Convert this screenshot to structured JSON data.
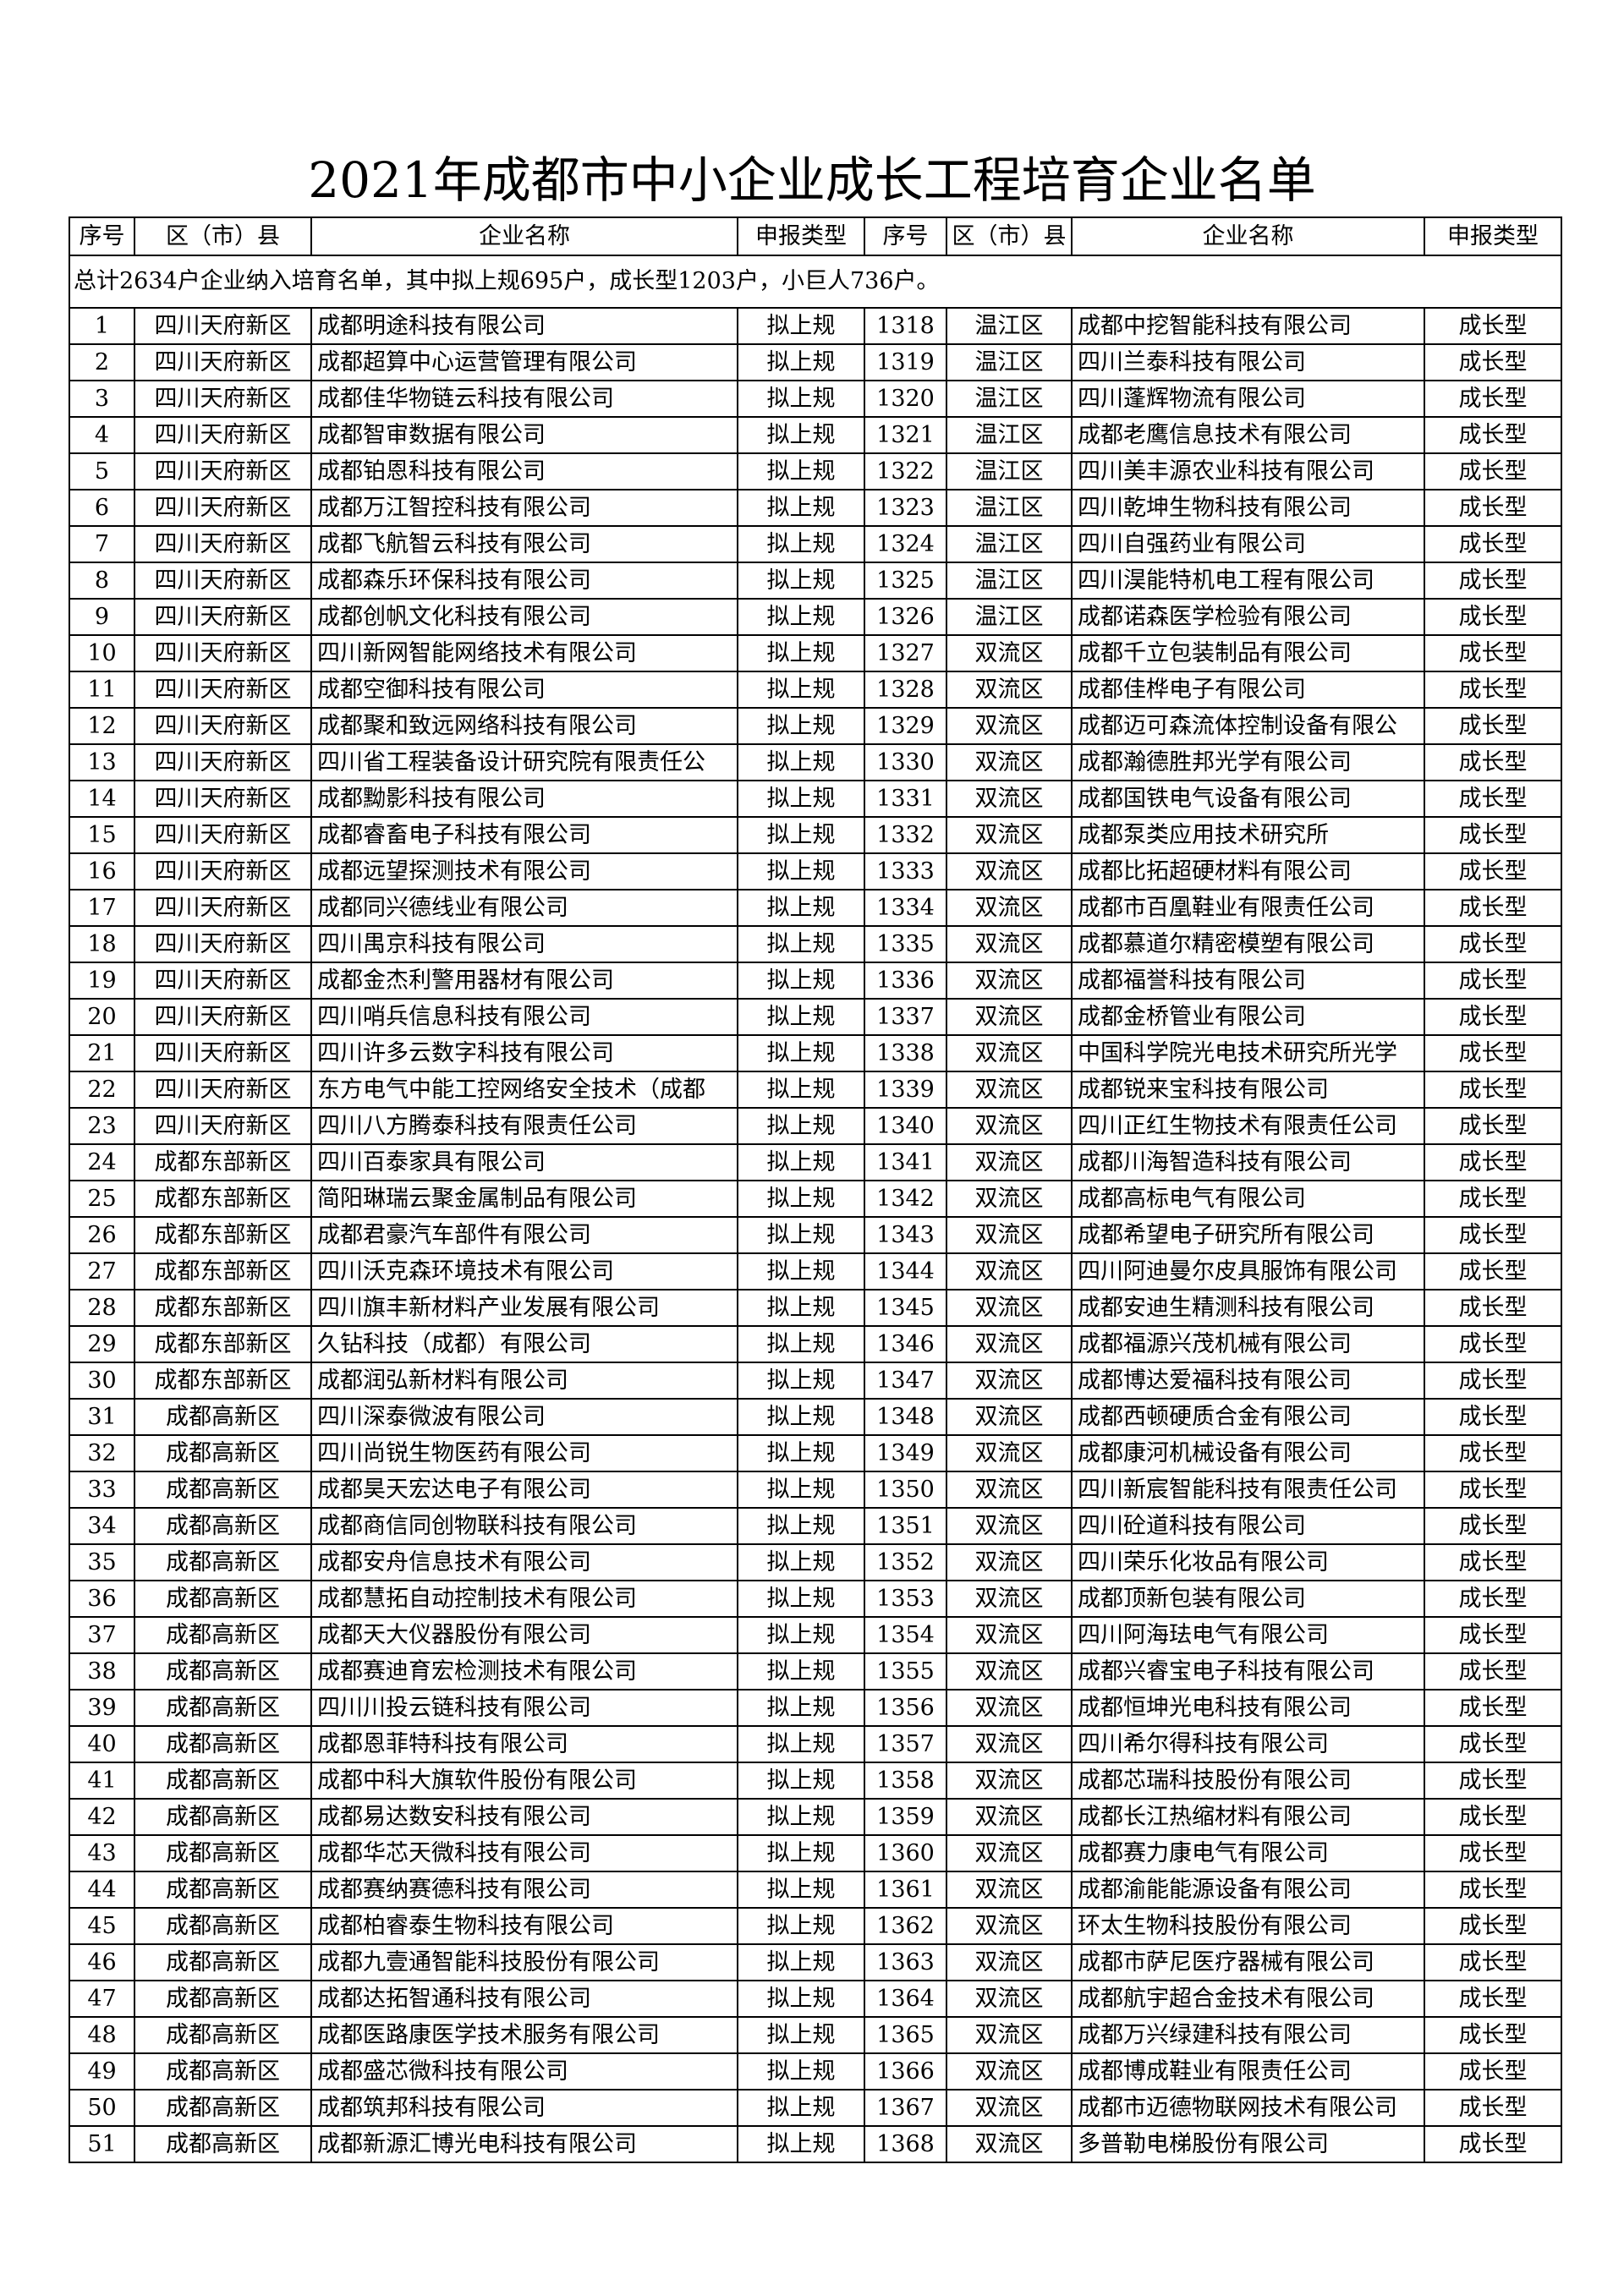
{
  "title": "2021年成都市中小企业成长工程培育企业名单",
  "headers": [
    "序号",
    "区（市）县",
    "企业名称",
    "申报类型",
    "序号",
    "区（市）县",
    "企业名称",
    "申报类型"
  ],
  "summary": "总计2634户企业纳入培育名单，其中拟上规695户，成长型1203户，小巨人736户。",
  "rows": [
    [
      "1",
      "四川天府新区",
      "成都明途科技有限公司",
      "拟上规",
      "1318",
      "温江区",
      "成都中挖智能科技有限公司",
      "成长型"
    ],
    [
      "2",
      "四川天府新区",
      "成都超算中心运营管理有限公司",
      "拟上规",
      "1319",
      "温江区",
      "四川兰泰科技有限公司",
      "成长型"
    ],
    [
      "3",
      "四川天府新区",
      "成都佳华物链云科技有限公司",
      "拟上规",
      "1320",
      "温江区",
      "四川蓬辉物流有限公司",
      "成长型"
    ],
    [
      "4",
      "四川天府新区",
      "成都智审数据有限公司",
      "拟上规",
      "1321",
      "温江区",
      "成都老鹰信息技术有限公司",
      "成长型"
    ],
    [
      "5",
      "四川天府新区",
      "成都铂恩科技有限公司",
      "拟上规",
      "1322",
      "温江区",
      "四川美丰源农业科技有限公司",
      "成长型"
    ],
    [
      "6",
      "四川天府新区",
      "成都万江智控科技有限公司",
      "拟上规",
      "1323",
      "温江区",
      "四川乾坤生物科技有限公司",
      "成长型"
    ],
    [
      "7",
      "四川天府新区",
      "成都飞航智云科技有限公司",
      "拟上规",
      "1324",
      "温江区",
      "四川自强药业有限公司",
      "成长型"
    ],
    [
      "8",
      "四川天府新区",
      "成都森乐环保科技有限公司",
      "拟上规",
      "1325",
      "温江区",
      "四川淏能特机电工程有限公司",
      "成长型"
    ],
    [
      "9",
      "四川天府新区",
      "成都创帆文化科技有限公司",
      "拟上规",
      "1326",
      "温江区",
      "成都诺森医学检验有限公司",
      "成长型"
    ],
    [
      "10",
      "四川天府新区",
      "四川新网智能网络技术有限公司",
      "拟上规",
      "1327",
      "双流区",
      "成都千立包装制品有限公司",
      "成长型"
    ],
    [
      "11",
      "四川天府新区",
      "成都空御科技有限公司",
      "拟上规",
      "1328",
      "双流区",
      "成都佳桦电子有限公司",
      "成长型"
    ],
    [
      "12",
      "四川天府新区",
      "成都聚和致远网络科技有限公司",
      "拟上规",
      "1329",
      "双流区",
      "成都迈可森流体控制设备有限公",
      "成长型"
    ],
    [
      "13",
      "四川天府新区",
      "四川省工程装备设计研究院有限责任公",
      "拟上规",
      "1330",
      "双流区",
      "成都瀚德胜邦光学有限公司",
      "成长型"
    ],
    [
      "14",
      "四川天府新区",
      "成都黝影科技有限公司",
      "拟上规",
      "1331",
      "双流区",
      "成都国铁电气设备有限公司",
      "成长型"
    ],
    [
      "15",
      "四川天府新区",
      "成都睿畜电子科技有限公司",
      "拟上规",
      "1332",
      "双流区",
      "成都泵类应用技术研究所",
      "成长型"
    ],
    [
      "16",
      "四川天府新区",
      "成都远望探测技术有限公司",
      "拟上规",
      "1333",
      "双流区",
      "成都比拓超硬材料有限公司",
      "成长型"
    ],
    [
      "17",
      "四川天府新区",
      "成都同兴德线业有限公司",
      "拟上规",
      "1334",
      "双流区",
      "成都市百凰鞋业有限责任公司",
      "成长型"
    ],
    [
      "18",
      "四川天府新区",
      "四川禺京科技有限公司",
      "拟上规",
      "1335",
      "双流区",
      "成都慕道尔精密模塑有限公司",
      "成长型"
    ],
    [
      "19",
      "四川天府新区",
      "成都金杰利警用器材有限公司",
      "拟上规",
      "1336",
      "双流区",
      "成都福誉科技有限公司",
      "成长型"
    ],
    [
      "20",
      "四川天府新区",
      "四川哨兵信息科技有限公司",
      "拟上规",
      "1337",
      "双流区",
      "成都金桥管业有限公司",
      "成长型"
    ],
    [
      "21",
      "四川天府新区",
      "四川许多云数字科技有限公司",
      "拟上规",
      "1338",
      "双流区",
      "中国科学院光电技术研究所光学",
      "成长型"
    ],
    [
      "22",
      "四川天府新区",
      "东方电气中能工控网络安全技术（成都",
      "拟上规",
      "1339",
      "双流区",
      "成都锐来宝科技有限公司",
      "成长型"
    ],
    [
      "23",
      "四川天府新区",
      "四川八方腾泰科技有限责任公司",
      "拟上规",
      "1340",
      "双流区",
      "四川正红生物技术有限责任公司",
      "成长型"
    ],
    [
      "24",
      "成都东部新区",
      "四川百泰家具有限公司",
      "拟上规",
      "1341",
      "双流区",
      "成都川海智造科技有限公司",
      "成长型"
    ],
    [
      "25",
      "成都东部新区",
      "简阳琳瑞云聚金属制品有限公司",
      "拟上规",
      "1342",
      "双流区",
      "成都高标电气有限公司",
      "成长型"
    ],
    [
      "26",
      "成都东部新区",
      "成都君豪汽车部件有限公司",
      "拟上规",
      "1343",
      "双流区",
      "成都希望电子研究所有限公司",
      "成长型"
    ],
    [
      "27",
      "成都东部新区",
      "四川沃克森环境技术有限公司",
      "拟上规",
      "1344",
      "双流区",
      "四川阿迪曼尔皮具服饰有限公司",
      "成长型"
    ],
    [
      "28",
      "成都东部新区",
      "四川旗丰新材料产业发展有限公司",
      "拟上规",
      "1345",
      "双流区",
      "成都安迪生精测科技有限公司",
      "成长型"
    ],
    [
      "29",
      "成都东部新区",
      "久钻科技（成都）有限公司",
      "拟上规",
      "1346",
      "双流区",
      "成都福源兴茂机械有限公司",
      "成长型"
    ],
    [
      "30",
      "成都东部新区",
      "成都润弘新材料有限公司",
      "拟上规",
      "1347",
      "双流区",
      "成都博达爱福科技有限公司",
      "成长型"
    ],
    [
      "31",
      "成都高新区",
      "四川深泰微波有限公司",
      "拟上规",
      "1348",
      "双流区",
      "成都西顿硬质合金有限公司",
      "成长型"
    ],
    [
      "32",
      "成都高新区",
      "四川尚锐生物医药有限公司",
      "拟上规",
      "1349",
      "双流区",
      "成都康河机械设备有限公司",
      "成长型"
    ],
    [
      "33",
      "成都高新区",
      "成都昊天宏达电子有限公司",
      "拟上规",
      "1350",
      "双流区",
      "四川新宸智能科技有限责任公司",
      "成长型"
    ],
    [
      "34",
      "成都高新区",
      "成都商信同创物联科技有限公司",
      "拟上规",
      "1351",
      "双流区",
      "四川砼道科技有限公司",
      "成长型"
    ],
    [
      "35",
      "成都高新区",
      "成都安舟信息技术有限公司",
      "拟上规",
      "1352",
      "双流区",
      "四川荣乐化妆品有限公司",
      "成长型"
    ],
    [
      "36",
      "成都高新区",
      "成都慧拓自动控制技术有限公司",
      "拟上规",
      "1353",
      "双流区",
      "成都顶新包装有限公司",
      "成长型"
    ],
    [
      "37",
      "成都高新区",
      "成都天大仪器股份有限公司",
      "拟上规",
      "1354",
      "双流区",
      "四川阿海珐电气有限公司",
      "成长型"
    ],
    [
      "38",
      "成都高新区",
      "成都赛迪育宏检测技术有限公司",
      "拟上规",
      "1355",
      "双流区",
      "成都兴睿宝电子科技有限公司",
      "成长型"
    ],
    [
      "39",
      "成都高新区",
      "四川川投云链科技有限公司",
      "拟上规",
      "1356",
      "双流区",
      "成都恒坤光电科技有限公司",
      "成长型"
    ],
    [
      "40",
      "成都高新区",
      "成都恩菲特科技有限公司",
      "拟上规",
      "1357",
      "双流区",
      "四川希尔得科技有限公司",
      "成长型"
    ],
    [
      "41",
      "成都高新区",
      "成都中科大旗软件股份有限公司",
      "拟上规",
      "1358",
      "双流区",
      "成都芯瑞科技股份有限公司",
      "成长型"
    ],
    [
      "42",
      "成都高新区",
      "成都易达数安科技有限公司",
      "拟上规",
      "1359",
      "双流区",
      "成都长江热缩材料有限公司",
      "成长型"
    ],
    [
      "43",
      "成都高新区",
      "成都华芯天微科技有限公司",
      "拟上规",
      "1360",
      "双流区",
      "成都赛力康电气有限公司",
      "成长型"
    ],
    [
      "44",
      "成都高新区",
      "成都赛纳赛德科技有限公司",
      "拟上规",
      "1361",
      "双流区",
      "成都渝能能源设备有限公司",
      "成长型"
    ],
    [
      "45",
      "成都高新区",
      "成都柏睿泰生物科技有限公司",
      "拟上规",
      "1362",
      "双流区",
      "环太生物科技股份有限公司",
      "成长型"
    ],
    [
      "46",
      "成都高新区",
      "成都九壹通智能科技股份有限公司",
      "拟上规",
      "1363",
      "双流区",
      "成都市萨尼医疗器械有限公司",
      "成长型"
    ],
    [
      "47",
      "成都高新区",
      "成都达拓智通科技有限公司",
      "拟上规",
      "1364",
      "双流区",
      "成都航宇超合金技术有限公司",
      "成长型"
    ],
    [
      "48",
      "成都高新区",
      "成都医路康医学技术服务有限公司",
      "拟上规",
      "1365",
      "双流区",
      "成都万兴绿建科技有限公司",
      "成长型"
    ],
    [
      "49",
      "成都高新区",
      "成都盛芯微科技有限公司",
      "拟上规",
      "1366",
      "双流区",
      "成都博成鞋业有限责任公司",
      "成长型"
    ],
    [
      "50",
      "成都高新区",
      "成都筑邦科技有限公司",
      "拟上规",
      "1367",
      "双流区",
      "成都市迈德物联网技术有限公司",
      "成长型"
    ],
    [
      "51",
      "成都高新区",
      "成都新源汇博光电科技有限公司",
      "拟上规",
      "1368",
      "双流区",
      "多普勒电梯股份有限公司",
      "成长型"
    ]
  ]
}
